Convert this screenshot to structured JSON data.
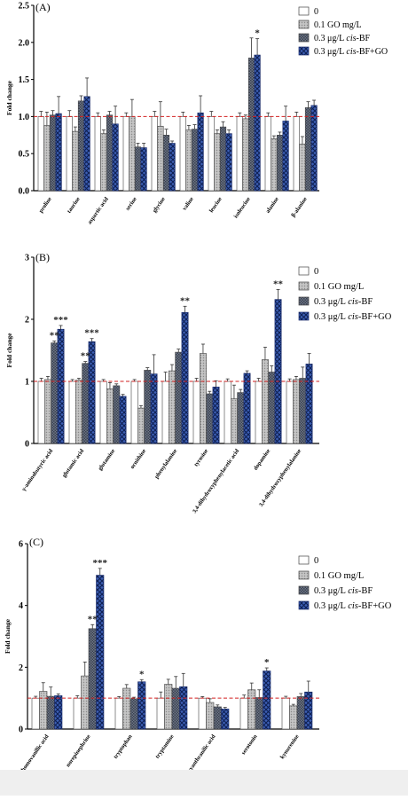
{
  "chart_data": [
    {
      "type": "bar",
      "panel_label": "(A)",
      "ylabel": "Fold change",
      "ylim": [
        0,
        2.5
      ],
      "yticks": [
        0.0,
        0.5,
        1.0,
        1.5,
        2.0,
        2.5
      ],
      "categories": [
        "proline",
        "taurine",
        "aspartic acid",
        "serine",
        "glycine",
        "valine",
        "leucine",
        "isoleucine",
        "alanine",
        "β-alanine"
      ],
      "series": [
        {
          "name": "0",
          "values": [
            1.0,
            1.0,
            1.0,
            1.0,
            1.0,
            1.0,
            1.0,
            1.0,
            1.0,
            1.0
          ],
          "errors": [
            0.07,
            0.08,
            0.05,
            0.05,
            0.07,
            0.06,
            0.07,
            0.05,
            0.05,
            0.06
          ]
        },
        {
          "name": "0.1 GO mg/L",
          "values": [
            0.88,
            0.8,
            0.77,
            1.0,
            0.87,
            0.82,
            0.77,
            0.97,
            0.7,
            0.63
          ],
          "errors": [
            0.18,
            0.06,
            0.05,
            0.23,
            0.33,
            0.06,
            0.05,
            0.05,
            0.04,
            0.1
          ]
        },
        {
          "name": "0.3 μg/L cis-BF",
          "values": [
            1.02,
            1.21,
            1.02,
            0.59,
            0.75,
            0.83,
            0.86,
            1.79,
            0.75,
            1.12
          ],
          "errors": [
            0.06,
            0.07,
            0.05,
            0.05,
            0.08,
            0.06,
            0.07,
            0.27,
            0.04,
            0.08
          ]
        },
        {
          "name": "0.3 μg/L cis-BF+GO",
          "values": [
            1.04,
            1.27,
            0.9,
            0.58,
            0.64,
            1.05,
            0.77,
            1.83,
            0.94,
            1.15
          ],
          "errors": [
            0.23,
            0.25,
            0.24,
            0.06,
            0.03,
            0.23,
            0.05,
            0.22,
            0.2,
            0.07
          ]
        }
      ],
      "reference_line": 1.0,
      "annotations": [
        {
          "category": "isoleucine",
          "series": "0.3 μg/L cis-BF+GO",
          "text": "*"
        }
      ],
      "legend_placement": "top-right"
    },
    {
      "type": "bar",
      "panel_label": "(B)",
      "ylabel": "Fold change",
      "ylim": [
        0,
        3
      ],
      "yticks": [
        0,
        1,
        2,
        3
      ],
      "categories": [
        "γ-aminobutyric acid",
        "glutamic acid",
        "glutamine",
        "ornithine",
        "phenylalanine",
        "tyrosine",
        "3,4-dihydroxyphenylacetic acid",
        "dopamine",
        "3,4-dihydroxyphenylalanine"
      ],
      "series": [
        {
          "name": "0",
          "values": [
            1.0,
            1.0,
            1.0,
            1.0,
            1.0,
            1.0,
            1.0,
            1.0,
            1.0
          ],
          "errors": [
            0.05,
            0.03,
            0.03,
            0.03,
            0.15,
            0.05,
            0.04,
            0.05,
            0.04
          ]
        },
        {
          "name": "0.1 GO mg/L",
          "values": [
            1.03,
            1.02,
            0.88,
            0.57,
            1.17,
            1.45,
            0.72,
            1.35,
            1.03
          ],
          "errors": [
            0.05,
            0.03,
            0.1,
            0.04,
            0.1,
            0.15,
            0.22,
            0.2,
            0.05
          ]
        },
        {
          "name": "0.3 μg/L cis-BF",
          "values": [
            1.62,
            1.29,
            0.93,
            1.18,
            1.47,
            0.8,
            0.82,
            1.15,
            1.05
          ],
          "errors": [
            0.03,
            0.03,
            0.03,
            0.04,
            0.05,
            0.04,
            0.05,
            0.1,
            0.18
          ]
        },
        {
          "name": "0.3 μg/L cis-BF+GO",
          "values": [
            1.84,
            1.64,
            0.76,
            1.12,
            2.11,
            0.91,
            1.13,
            2.32,
            1.28
          ],
          "errors": [
            0.06,
            0.05,
            0.03,
            0.31,
            0.1,
            0.1,
            0.04,
            0.16,
            0.17
          ]
        }
      ],
      "reference_line": 1.0,
      "annotations": [
        {
          "category": "γ-aminobutyric acid",
          "series": "0.3 μg/L cis-BF",
          "text": "**"
        },
        {
          "category": "γ-aminobutyric acid",
          "series": "0.3 μg/L cis-BF+GO",
          "text": "***"
        },
        {
          "category": "glutamic acid",
          "series": "0.3 μg/L cis-BF",
          "text": "**"
        },
        {
          "category": "glutamic acid",
          "series": "0.3 μg/L cis-BF+GO",
          "text": "***"
        },
        {
          "category": "phenylalanine",
          "series": "0.3 μg/L cis-BF+GO",
          "text": "**"
        },
        {
          "category": "dopamine",
          "series": "0.3 μg/L cis-BF+GO",
          "text": "**"
        }
      ],
      "legend_placement": "top-right"
    },
    {
      "type": "bar",
      "panel_label": "(C)",
      "ylabel": "Fold change",
      "ylim": [
        0,
        6
      ],
      "yticks": [
        0,
        2,
        4,
        6
      ],
      "categories": [
        "homovanillic acid",
        "norepinephrine",
        "tryptophan",
        "tryptamine",
        "3-hydroxyanthranilic acid",
        "serotonin",
        "kynurenine"
      ],
      "series": [
        {
          "name": "0",
          "values": [
            1.0,
            1.0,
            1.0,
            1.0,
            1.0,
            1.0,
            1.0
          ],
          "errors": [
            0.06,
            0.08,
            0.05,
            0.2,
            0.05,
            0.1,
            0.06
          ]
        },
        {
          "name": "0.1 GO mg/L",
          "values": [
            1.22,
            1.72,
            1.32,
            1.45,
            0.86,
            1.27,
            0.75
          ],
          "errors": [
            0.28,
            0.45,
            0.12,
            0.16,
            0.12,
            0.22,
            0.05
          ]
        },
        {
          "name": "0.3 μg/L cis-BF",
          "values": [
            1.06,
            3.25,
            0.98,
            1.32,
            0.72,
            1.02,
            1.05
          ],
          "errors": [
            0.3,
            0.13,
            0.05,
            0.38,
            0.06,
            0.25,
            0.1
          ]
        },
        {
          "name": "0.3 μg/L cis-BF+GO",
          "values": [
            1.08,
            4.98,
            1.53,
            1.37,
            0.65,
            1.88,
            1.2
          ],
          "errors": [
            0.06,
            0.22,
            0.07,
            0.43,
            0.05,
            0.1,
            0.35
          ]
        }
      ],
      "reference_line": 1.0,
      "annotations": [
        {
          "category": "norepinephrine",
          "series": "0.3 μg/L cis-BF",
          "text": "**"
        },
        {
          "category": "norepinephrine",
          "series": "0.3 μg/L cis-BF+GO",
          "text": "***"
        },
        {
          "category": "tryptophan",
          "series": "0.3 μg/L cis-BF+GO",
          "text": "*"
        },
        {
          "category": "serotonin",
          "series": "0.3 μg/L cis-BF+GO",
          "text": "*"
        }
      ],
      "legend_placement": "top-right"
    }
  ]
}
